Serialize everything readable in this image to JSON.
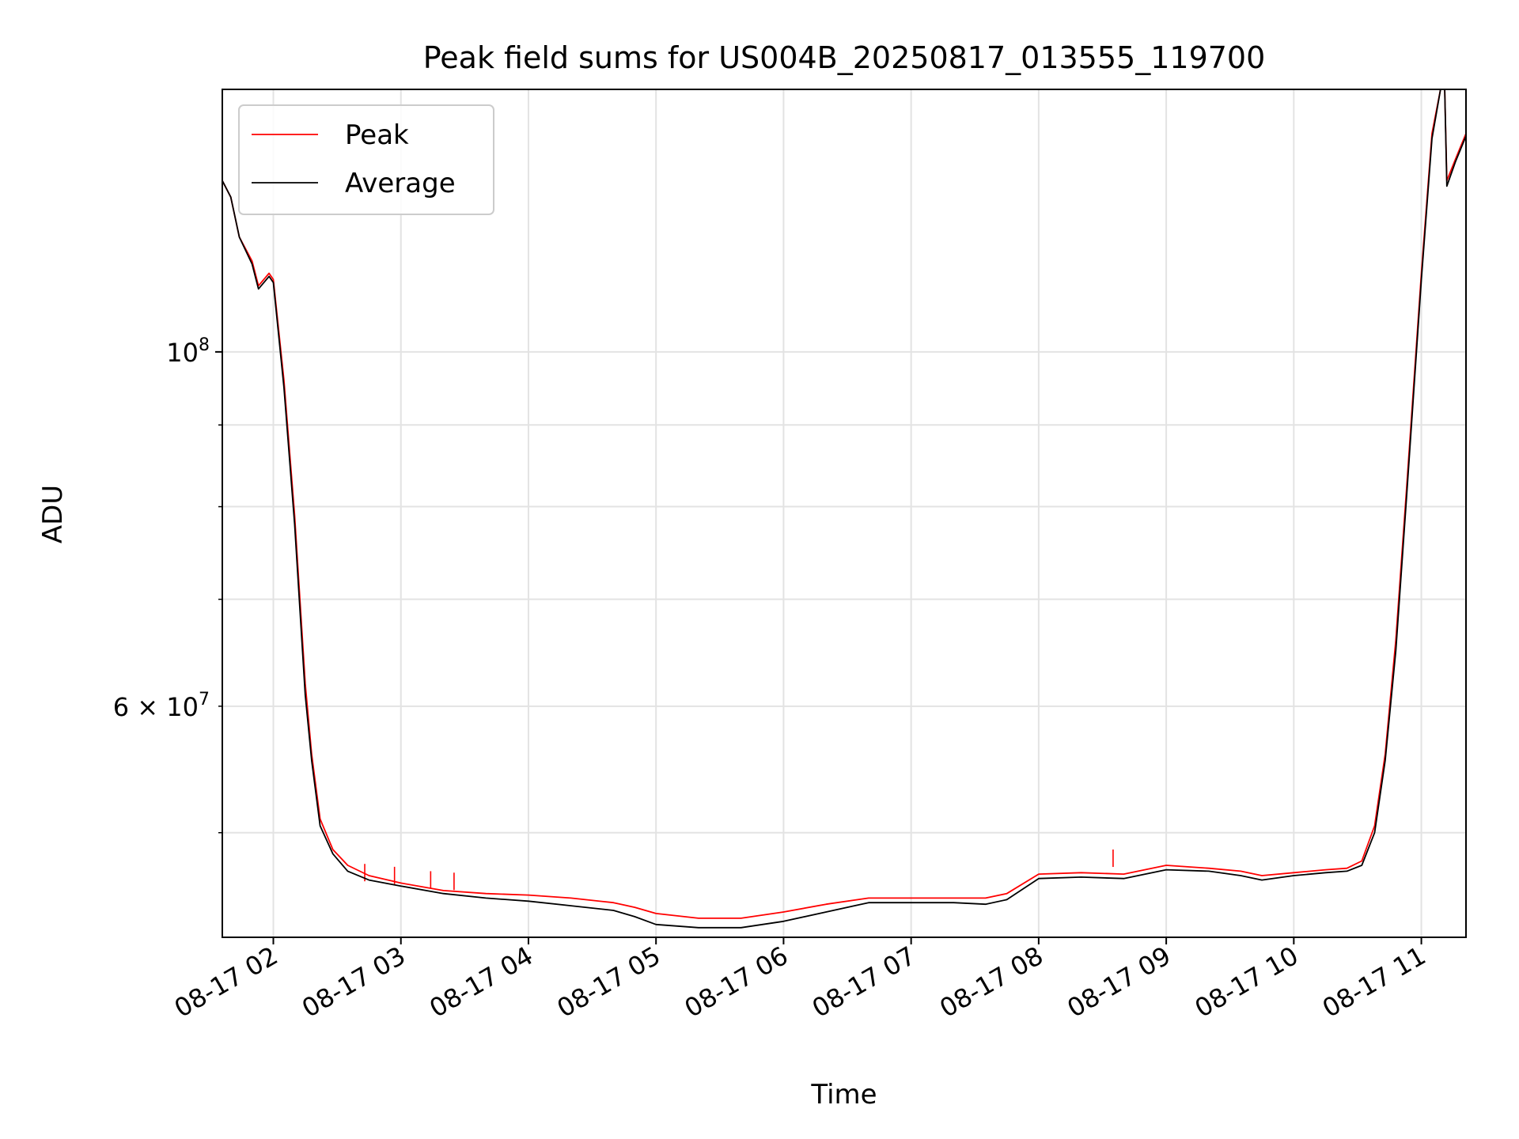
{
  "chart_data": {
    "type": "line",
    "title": "Peak field sums for US004B_20250817_013555_119700",
    "xlabel": "Time",
    "ylabel": "ADU",
    "y_scale": "log",
    "grid": true,
    "legend_position": "upper-left",
    "xlim": [
      "2025-08-17 01:36",
      "2025-08-17 11:21"
    ],
    "ylim": [
      43000000,
      146000000
    ],
    "x_ticks": [
      "2025-08-17 02:00",
      "2025-08-17 03:00",
      "2025-08-17 04:00",
      "2025-08-17 05:00",
      "2025-08-17 06:00",
      "2025-08-17 07:00",
      "2025-08-17 08:00",
      "2025-08-17 09:00",
      "2025-08-17 10:00",
      "2025-08-17 11:00"
    ],
    "x_tick_labels": [
      "08-17 02",
      "08-17 03",
      "08-17 04",
      "08-17 05",
      "08-17 06",
      "08-17 07",
      "08-17 08",
      "08-17 09",
      "08-17 10",
      "08-17 11"
    ],
    "y_major_ticks": [
      {
        "value": 100000000,
        "mantissa": "",
        "exponent": "8"
      }
    ],
    "y_minor_ticks": [
      {
        "value": 60000000,
        "mantissa": "6",
        "exponent": "7"
      }
    ],
    "y_minor_unlabeled": [
      50000000,
      70000000,
      80000000,
      90000000
    ],
    "series": [
      {
        "name": "Peak",
        "color": "#ff0000",
        "x": [
          "2025-08-17 01:36",
          "2025-08-17 01:40",
          "2025-08-17 01:44",
          "2025-08-17 01:50",
          "2025-08-17 01:53",
          "2025-08-17 01:58",
          "2025-08-17 02:00",
          "2025-08-17 02:05",
          "2025-08-17 02:10",
          "2025-08-17 02:15",
          "2025-08-17 02:18",
          "2025-08-17 02:22",
          "2025-08-17 02:28",
          "2025-08-17 02:35",
          "2025-08-17 02:45",
          "2025-08-17 03:00",
          "2025-08-17 03:20",
          "2025-08-17 03:40",
          "2025-08-17 04:00",
          "2025-08-17 04:20",
          "2025-08-17 04:40",
          "2025-08-17 04:50",
          "2025-08-17 05:00",
          "2025-08-17 05:20",
          "2025-08-17 05:40",
          "2025-08-17 06:00",
          "2025-08-17 06:20",
          "2025-08-17 06:40",
          "2025-08-17 07:00",
          "2025-08-17 07:20",
          "2025-08-17 07:35",
          "2025-08-17 07:45",
          "2025-08-17 08:00",
          "2025-08-17 08:20",
          "2025-08-17 08:40",
          "2025-08-17 09:00",
          "2025-08-17 09:20",
          "2025-08-17 09:35",
          "2025-08-17 09:45",
          "2025-08-17 10:00",
          "2025-08-17 10:15",
          "2025-08-17 10:25",
          "2025-08-17 10:32",
          "2025-08-17 10:38",
          "2025-08-17 10:43",
          "2025-08-17 10:48",
          "2025-08-17 10:53",
          "2025-08-17 11:00",
          "2025-08-17 11:05",
          "2025-08-17 11:09",
          "2025-08-17 11:11",
          "2025-08-17 11:12",
          "2025-08-17 11:16",
          "2025-08-17 11:21"
        ],
        "y": [
          128000000,
          125000000,
          118000000,
          114000000,
          110000000,
          112000000,
          111000000,
          96000000,
          79000000,
          62000000,
          56000000,
          51000000,
          48800000,
          47700000,
          47000000,
          46500000,
          46000000,
          45800000,
          45700000,
          45500000,
          45200000,
          44900000,
          44500000,
          44200000,
          44200000,
          44600000,
          45100000,
          45500000,
          45500000,
          45500000,
          45500000,
          45800000,
          47100000,
          47200000,
          47100000,
          47700000,
          47500000,
          47300000,
          47000000,
          47200000,
          47400000,
          47500000,
          48000000,
          50500000,
          56000000,
          66000000,
          82000000,
          112000000,
          137000000,
          146000000,
          146000000,
          128000000,
          132000000,
          137000000
        ],
        "spikes": [
          {
            "x": "2025-08-17 02:43",
            "y": 47800000
          },
          {
            "x": "2025-08-17 02:57",
            "y": 47600000
          },
          {
            "x": "2025-08-17 03:14",
            "y": 47300000
          },
          {
            "x": "2025-08-17 03:25",
            "y": 47200000
          },
          {
            "x": "2025-08-17 08:35",
            "y": 48800000
          }
        ]
      },
      {
        "name": "Average",
        "color": "#000000",
        "x": [
          "2025-08-17 01:36",
          "2025-08-17 01:40",
          "2025-08-17 01:44",
          "2025-08-17 01:50",
          "2025-08-17 01:53",
          "2025-08-17 01:58",
          "2025-08-17 02:00",
          "2025-08-17 02:05",
          "2025-08-17 02:10",
          "2025-08-17 02:15",
          "2025-08-17 02:18",
          "2025-08-17 02:22",
          "2025-08-17 02:28",
          "2025-08-17 02:35",
          "2025-08-17 02:45",
          "2025-08-17 03:00",
          "2025-08-17 03:20",
          "2025-08-17 03:40",
          "2025-08-17 04:00",
          "2025-08-17 04:20",
          "2025-08-17 04:40",
          "2025-08-17 04:50",
          "2025-08-17 05:00",
          "2025-08-17 05:20",
          "2025-08-17 05:40",
          "2025-08-17 06:00",
          "2025-08-17 06:20",
          "2025-08-17 06:40",
          "2025-08-17 07:00",
          "2025-08-17 07:20",
          "2025-08-17 07:35",
          "2025-08-17 07:45",
          "2025-08-17 08:00",
          "2025-08-17 08:20",
          "2025-08-17 08:40",
          "2025-08-17 09:00",
          "2025-08-17 09:20",
          "2025-08-17 09:35",
          "2025-08-17 09:45",
          "2025-08-17 10:00",
          "2025-08-17 10:15",
          "2025-08-17 10:25",
          "2025-08-17 10:32",
          "2025-08-17 10:38",
          "2025-08-17 10:43",
          "2025-08-17 10:48",
          "2025-08-17 10:53",
          "2025-08-17 11:00",
          "2025-08-17 11:05",
          "2025-08-17 11:09",
          "2025-08-17 11:11",
          "2025-08-17 11:12",
          "2025-08-17 11:16",
          "2025-08-17 11:21"
        ],
        "y": [
          128000000,
          125000000,
          118000000,
          113500000,
          109500000,
          111500000,
          110500000,
          95000000,
          78000000,
          61000000,
          55500000,
          50500000,
          48500000,
          47300000,
          46700000,
          46300000,
          45800000,
          45500000,
          45300000,
          45000000,
          44700000,
          44300000,
          43800000,
          43600000,
          43600000,
          44000000,
          44600000,
          45200000,
          45200000,
          45200000,
          45100000,
          45400000,
          46800000,
          46900000,
          46800000,
          47400000,
          47300000,
          47000000,
          46700000,
          47000000,
          47200000,
          47300000,
          47700000,
          50000000,
          55500000,
          65000000,
          81000000,
          111000000,
          136000000,
          146000000,
          146000000,
          127000000,
          131500000,
          136500000
        ]
      }
    ]
  }
}
